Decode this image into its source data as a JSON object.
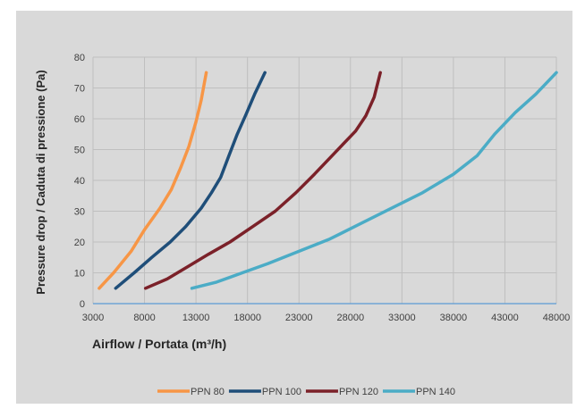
{
  "chart_data": {
    "type": "line",
    "xlabel": "Airflow / Portata (m³/h)",
    "ylabel": "Pressure drop / Caduta di pressione (Pa)",
    "xlim": [
      3000,
      48000
    ],
    "ylim": [
      0,
      80
    ],
    "x_ticks": [
      3000,
      8000,
      13000,
      18000,
      23000,
      28000,
      33000,
      38000,
      43000,
      48000
    ],
    "y_ticks": [
      0,
      10,
      20,
      30,
      40,
      50,
      60,
      70,
      80
    ],
    "grid": true,
    "legend_position": "bottom",
    "series": [
      {
        "name": "PPN 80",
        "color": "#f79646",
        "points": [
          [
            3600,
            5
          ],
          [
            5000,
            10
          ],
          [
            6700,
            17
          ],
          [
            8000,
            24
          ],
          [
            9500,
            31
          ],
          [
            10600,
            37
          ],
          [
            11500,
            44
          ],
          [
            12300,
            51
          ],
          [
            13000,
            59
          ],
          [
            13500,
            66
          ],
          [
            14000,
            75
          ]
        ]
      },
      {
        "name": "PPN 100",
        "color": "#1f4e79",
        "points": [
          [
            5200,
            5
          ],
          [
            7000,
            10
          ],
          [
            8700,
            15
          ],
          [
            10500,
            20
          ],
          [
            12000,
            25
          ],
          [
            13500,
            31
          ],
          [
            14500,
            36
          ],
          [
            15400,
            41
          ],
          [
            16200,
            48
          ],
          [
            17000,
            55
          ],
          [
            17800,
            61
          ],
          [
            18700,
            68
          ],
          [
            19700,
            75
          ]
        ]
      },
      {
        "name": "PPN 120",
        "color": "#7b2129",
        "points": [
          [
            8100,
            5
          ],
          [
            10200,
            8
          ],
          [
            12200,
            12
          ],
          [
            14200,
            16
          ],
          [
            16300,
            20
          ],
          [
            18500,
            25
          ],
          [
            20700,
            30
          ],
          [
            22700,
            36
          ],
          [
            24500,
            42
          ],
          [
            26500,
            49
          ],
          [
            28500,
            56
          ],
          [
            29500,
            61
          ],
          [
            30300,
            67
          ],
          [
            30900,
            75
          ]
        ]
      },
      {
        "name": "PPN 140",
        "color": "#4bacc6",
        "points": [
          [
            12600,
            5
          ],
          [
            15000,
            7
          ],
          [
            17500,
            10
          ],
          [
            20000,
            13
          ],
          [
            23000,
            17
          ],
          [
            26000,
            21
          ],
          [
            29000,
            26
          ],
          [
            32000,
            31
          ],
          [
            35000,
            36
          ],
          [
            38000,
            42
          ],
          [
            40300,
            48
          ],
          [
            42000,
            55
          ],
          [
            44000,
            62
          ],
          [
            46000,
            68
          ],
          [
            48000,
            75
          ]
        ]
      }
    ]
  }
}
